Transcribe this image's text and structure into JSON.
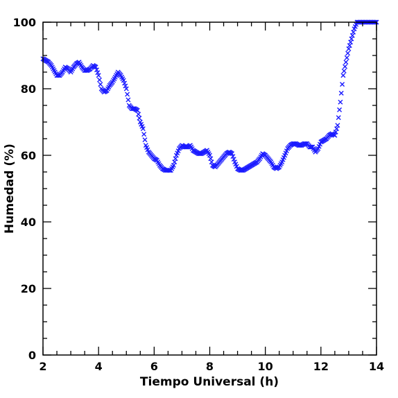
{
  "chart_data": {
    "type": "scatter",
    "title": "",
    "xlabel": "Tiempo Universal (h)",
    "ylabel": "Humedad (%)",
    "xlim": [
      2,
      14
    ],
    "ylim": [
      0,
      100
    ],
    "xticks": [
      "2",
      "4",
      "6",
      "8",
      "10",
      "12",
      "14"
    ],
    "yticks": [
      "0",
      "20",
      "40",
      "60",
      "80",
      "100"
    ],
    "marker": "x",
    "color": "#1a1aff",
    "grid": false,
    "legend": "none",
    "series": [
      {
        "x": [
          2.0,
          2.1,
          2.2,
          2.3,
          2.4,
          2.5,
          2.6,
          2.7,
          2.8,
          2.9,
          3.0,
          3.1,
          3.2,
          3.3,
          3.4,
          3.5,
          3.6,
          3.7,
          3.8,
          3.9,
          4.0,
          4.1,
          4.2,
          4.3,
          4.4,
          4.5,
          4.6,
          4.7,
          4.8,
          4.9,
          5.0,
          5.1,
          5.2,
          5.3,
          5.4,
          5.5,
          5.6,
          5.7,
          5.8,
          5.9,
          6.0,
          6.1,
          6.2,
          6.3,
          6.4,
          6.5,
          6.6,
          6.7,
          6.8,
          6.9,
          7.0,
          7.1,
          7.2,
          7.3,
          7.4,
          7.5,
          7.6,
          7.7,
          7.8,
          7.9,
          8.0,
          8.1,
          8.2,
          8.3,
          8.4,
          8.5,
          8.6,
          8.7,
          8.8,
          8.9,
          9.0,
          9.1,
          9.2,
          9.3,
          9.4,
          9.5,
          9.6,
          9.7,
          9.8,
          9.9,
          10.0,
          10.1,
          10.2,
          10.3,
          10.4,
          10.5,
          10.6,
          10.7,
          10.8,
          10.9,
          11.0,
          11.1,
          11.2,
          11.3,
          11.4,
          11.5,
          11.6,
          11.7,
          11.8,
          11.9,
          12.0,
          12.1,
          12.2,
          12.3,
          12.4,
          12.5,
          12.6,
          12.7,
          12.8,
          12.9,
          13.0,
          13.1,
          13.2,
          13.3,
          13.4,
          13.5,
          13.6,
          13.7,
          13.8,
          13.9,
          14.0
        ],
        "y": [
          89,
          88.5,
          88,
          87,
          85.5,
          84,
          84,
          85,
          86.5,
          86,
          85,
          86.5,
          87.5,
          88,
          86.5,
          85.5,
          85.5,
          86,
          87,
          86.5,
          84,
          80,
          79,
          79.5,
          81,
          82,
          83.5,
          85,
          84,
          82.5,
          80,
          75,
          74,
          74,
          73.5,
          70,
          68,
          63,
          61,
          60,
          59,
          58.5,
          57,
          56,
          55.5,
          55.5,
          55.5,
          57,
          60,
          62,
          63,
          62.5,
          62.5,
          63,
          61.5,
          61,
          60.5,
          60.5,
          61,
          61.5,
          60,
          57,
          56.5,
          57.5,
          58.5,
          59.5,
          60.5,
          61,
          60.5,
          58,
          56,
          55.5,
          55.5,
          56,
          56.5,
          57,
          57.5,
          58,
          59,
          60.5,
          60,
          59,
          58,
          56.5,
          56,
          56.5,
          58,
          60,
          62,
          63,
          63.5,
          63.5,
          63,
          63,
          63.5,
          63.5,
          62.5,
          62.5,
          61,
          62,
          64,
          64.5,
          65,
          66,
          66.5,
          66,
          69,
          76,
          84,
          88,
          92,
          95,
          98,
          100,
          100,
          100,
          100,
          100,
          100,
          100,
          100
        ]
      }
    ]
  }
}
